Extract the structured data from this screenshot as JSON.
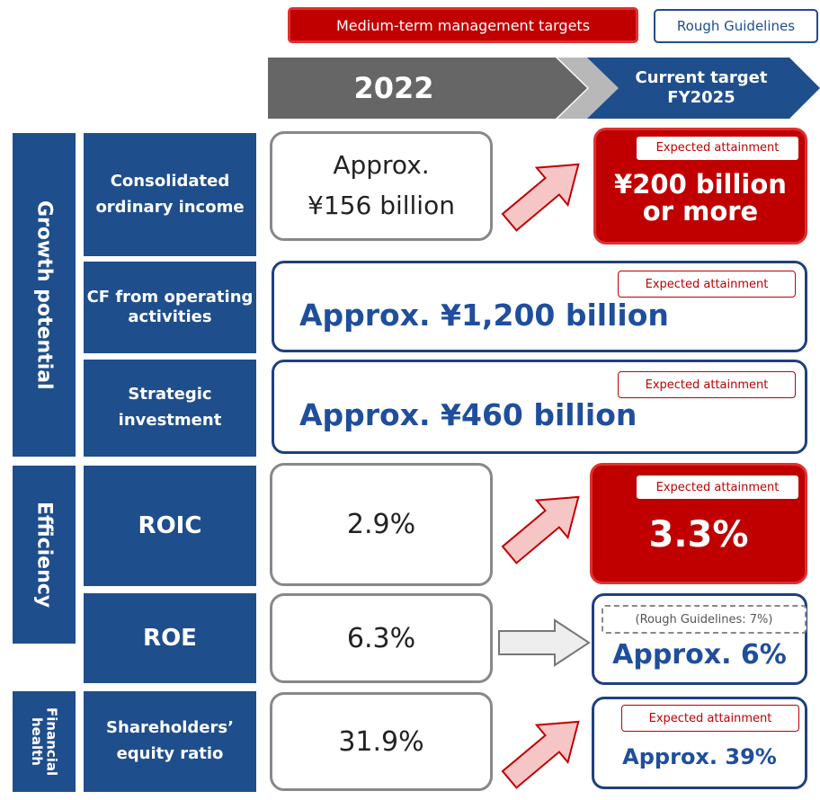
{
  "legend": [
    "Medium-term management targets",
    "Rough Guidelines"
  ],
  "header": {
    "year": "2022",
    "target": "Current target FY2025"
  },
  "groups": [
    "Growth potential",
    "Efficiency",
    "Financial health"
  ],
  "rows": [
    {
      "label": "Consolidated ordinary income",
      "current": [
        "Approx.",
        "¥156 billion"
      ],
      "tag": "Expected attainment",
      "target": "¥200 billion\nor more"
    },
    {
      "label": "CF from operating activities",
      "tag": "Expected attainment",
      "target": "Approx. ¥1,200 billion"
    },
    {
      "label": "Strategic investment",
      "tag": "Expected attainment",
      "target": "Approx. ¥460 billion"
    },
    {
      "label": "ROIC",
      "current": "2.9%",
      "tag": "Expected attainment",
      "target": "3.3%"
    },
    {
      "label": "ROE",
      "current": "6.3%",
      "tag": "(Rough Guidelines: 7%)",
      "target": "Approx. 6%"
    },
    {
      "label": "Shareholders’ equity ratio",
      "current": "31.9%",
      "tag": "Expected attainment",
      "target": "Approx. 39%"
    }
  ]
}
